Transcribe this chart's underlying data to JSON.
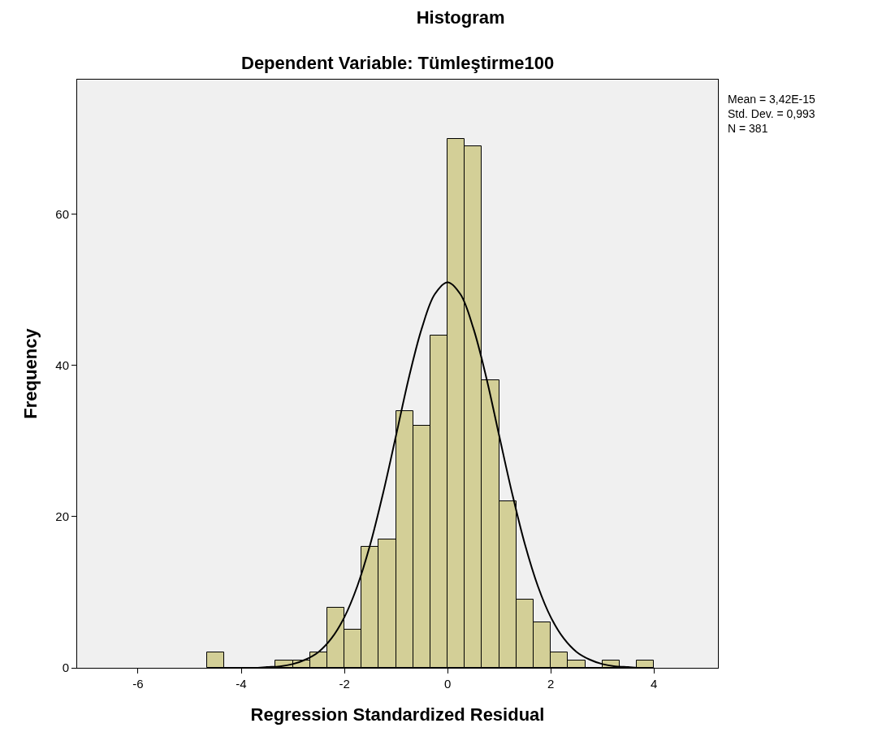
{
  "chart_data": {
    "type": "histogram",
    "title": "Histogram",
    "subtitle": "Dependent Variable: Tümleştirme100",
    "xlabel": "Regression Standardized Residual",
    "ylabel": "Frequency",
    "bins": [
      -4.667,
      -4.333,
      -4,
      -3.667,
      -3.333,
      -3,
      -2.667,
      -2.333,
      -2,
      -1.667,
      -1.333,
      -1,
      -0.667,
      -0.333,
      0,
      0.333,
      0.667,
      1,
      1.333,
      1.667,
      2,
      2.333,
      2.667,
      3,
      3.333,
      3.667,
      4
    ],
    "values": [
      2,
      0,
      0,
      0,
      1,
      1,
      2,
      8,
      5,
      16,
      17,
      34,
      32,
      44,
      70,
      69,
      38,
      22,
      9,
      6,
      2,
      1,
      0,
      1,
      0,
      1
    ],
    "color": "#d3cf97",
    "series": [
      {
        "type": "line",
        "color": "#000000",
        "x": [
          -4,
          -3.75,
          -3.5,
          -3.25,
          -3,
          -2.75,
          -2.5,
          -2.25,
          -2,
          -1.75,
          -1.5,
          -1.25,
          -1,
          -0.75,
          -0.5,
          -0.25,
          0,
          0.25,
          0.5,
          0.75,
          1,
          1.25,
          1.5,
          1.75,
          2,
          2.25,
          2.5,
          2.75,
          3,
          3.25,
          3.5,
          3.75,
          4
        ],
        "values": [
          0,
          0,
          0.1,
          0.2,
          0.5,
          1.1,
          2.1,
          3.9,
          6.7,
          10.8,
          16.3,
          23.1,
          30.7,
          38.4,
          44.9,
          49.4,
          51,
          49.4,
          44.9,
          38.4,
          30.7,
          23.1,
          16.3,
          10.8,
          6.7,
          3.9,
          2.1,
          1.1,
          0.5,
          0.2,
          0.1,
          0,
          0
        ]
      }
    ],
    "annotations": [
      "Mean = 3,42E-15\nStd. Dev. = 0,993\nN = 381"
    ],
    "xlim": [
      -7.18,
      5.24
    ],
    "xticks": [
      -6,
      -4,
      -2,
      0,
      2,
      4
    ],
    "ylim": [
      0,
      77.8
    ],
    "yticks": [
      0,
      20,
      40,
      60
    ],
    "grid": false
  }
}
